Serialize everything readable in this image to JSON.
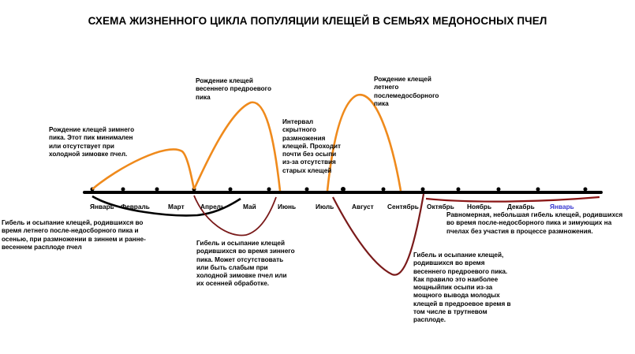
{
  "title": "СХЕМА  ЖИЗНЕННОГО ЦИКЛА ПОПУЛЯЦИИ КЛЕЩЕЙ В СЕМЬЯХ МЕДОНОСНЫХ ПЧЕЛ",
  "months": [
    "Январь",
    "Февраль",
    "Март",
    "Апрель",
    "Май",
    "Июнь",
    "Июль",
    "Август",
    "Сентябрь",
    "Октябрь",
    "Ноябрь",
    "Декабрь",
    "Январь"
  ],
  "annotations": {
    "winter_birth": "Рождение клещей зимнего\nпика. Этот пик минимален\nили отсутствует при\nхолодной зимовке пчел.",
    "spring_birth": "Рождение клещей\nвесеннего предроевого\nпика",
    "hidden_interval": "Интервал\nскрытного\nразмножения\nклещей. Проходит\nпочти без осыпи\nиз-за отсутствия\nстарых клещей",
    "summer_birth": "Рождение клещей\nлетнего\nпослемедосборного\nпика",
    "summer_death": "Гибель и осыпание клещей, родившихся во\nвремя летнего после-недосборного пика и\nосенью, при размножении в зиннем и ранне-\nвесеннем расплоде пчел",
    "winter_death": "Гибель и осыпание клещей\nродившихся во время зиннего\nпика. Может отсутствовать\nили быть слабым при\nхолодной зимовке пчел или\nих осенней обработке.",
    "spring_death": "Гибель и осыпание клещей,\nродившихся во время\nвесеннего предроевого пика.\nКак правило это наиболее\nмощныйпик осыпи из-за\nмощного вывода молодых\nклещей в предроевое время в\nтом числе в трутневом\nрасплоде.",
    "autumn_death": "Равномерная, небольшая гибель клещей, родившихся\nво время после-недосборного пика и зимующих на\nпчелах без участия в процессе размножения."
  },
  "colors": {
    "birth_curve": "#ef8a1c",
    "death_winter_peak": "#000000",
    "death_spring_peak": "#7a1a1a",
    "death_autumn": "#8a1616",
    "axis": "#000000",
    "last_month_label": "#3a3ad0"
  }
}
